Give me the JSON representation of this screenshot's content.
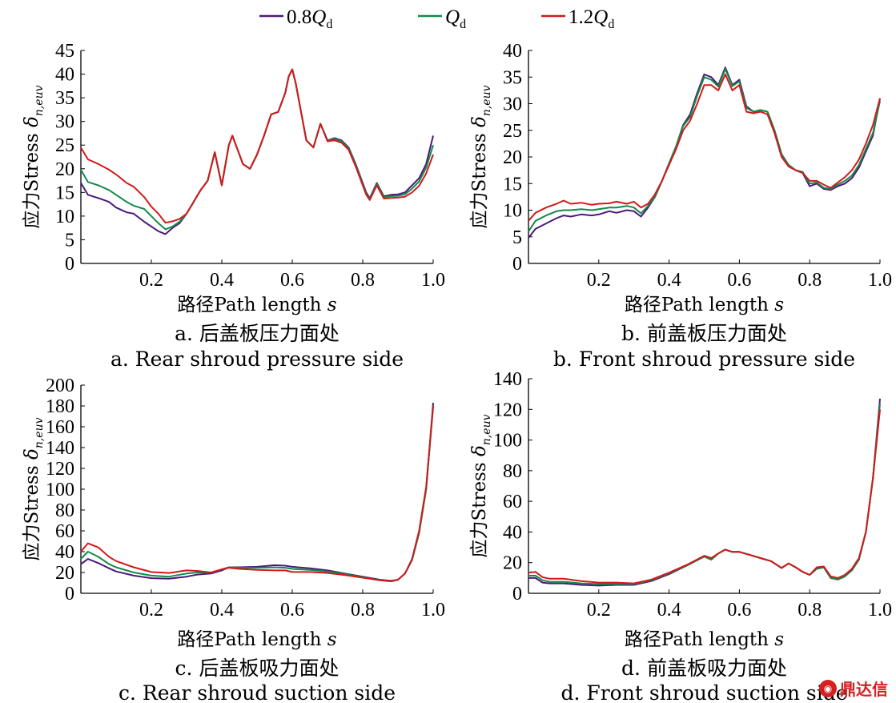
{
  "legend": {
    "items": [
      {
        "label": "0.8",
        "q": "Q",
        "sub": "d",
        "color": "#4a1a7a"
      },
      {
        "label": "",
        "q": "Q",
        "sub": "d",
        "color": "#138a4a"
      },
      {
        "label": "1.2",
        "q": "Q",
        "sub": "d",
        "color": "#d11a1a"
      }
    ]
  },
  "watermark": {
    "text": "鼎达信"
  },
  "chart_data": [
    {
      "type": "line",
      "caption_cn": "a. 后盖板压力面处",
      "caption_en": "a. Rear shroud pressure side",
      "xlabel_cn": "路径",
      "xlabel_en": "Path length ",
      "xlabel_var": "s",
      "ylabel_cn": "应力",
      "ylabel_en": "Stress ",
      "ylabel_var": "δ",
      "ylabel_sub": "n,euv",
      "xlim": [
        0,
        1.0
      ],
      "ylim": [
        0,
        45
      ],
      "xticks": [
        "0.2",
        "0.4",
        "0.6",
        "0.8",
        "1.0"
      ],
      "xtick_values": [
        0.2,
        0.4,
        0.6,
        0.8,
        1.0
      ],
      "yticks": [
        0,
        5,
        10,
        15,
        20,
        25,
        30,
        35,
        40,
        45
      ],
      "x": [
        0,
        0.02,
        0.05,
        0.08,
        0.1,
        0.13,
        0.15,
        0.18,
        0.2,
        0.22,
        0.24,
        0.26,
        0.28,
        0.3,
        0.32,
        0.34,
        0.36,
        0.38,
        0.4,
        0.42,
        0.43,
        0.44,
        0.46,
        0.48,
        0.5,
        0.52,
        0.54,
        0.56,
        0.58,
        0.59,
        0.6,
        0.61,
        0.62,
        0.64,
        0.66,
        0.68,
        0.7,
        0.72,
        0.74,
        0.76,
        0.78,
        0.8,
        0.81,
        0.82,
        0.84,
        0.86,
        0.88,
        0.9,
        0.92,
        0.94,
        0.96,
        0.98,
        1.0
      ],
      "series": [
        {
          "name": "0.8Qd",
          "color": "#4a1a7a",
          "values": [
            17,
            14.5,
            13.8,
            13,
            11.8,
            10.8,
            10.5,
            8.8,
            7.8,
            6.8,
            6.2,
            7.5,
            8.5,
            10.5,
            13,
            15.5,
            17.5,
            23.5,
            16.5,
            25,
            27,
            25,
            21,
            20,
            23,
            27,
            31.5,
            32,
            36,
            39.5,
            41,
            38,
            34,
            26,
            24.5,
            29.5,
            26,
            26.5,
            26,
            24.5,
            21,
            17,
            15,
            13.8,
            17,
            14.2,
            14.5,
            14.6,
            15,
            16.5,
            18,
            21,
            27
          ]
        },
        {
          "name": "Qd",
          "color": "#138a4a",
          "values": [
            19.8,
            17.2,
            16.5,
            15.5,
            14.5,
            13,
            12.2,
            11.5,
            10,
            8.5,
            7.2,
            7.8,
            8.8,
            10.5,
            13,
            15.5,
            17.5,
            23.5,
            16.5,
            25,
            27,
            25,
            21,
            20,
            23,
            27,
            31.5,
            32,
            36,
            39.5,
            41,
            38,
            34,
            26,
            24.5,
            29.5,
            26,
            26.3,
            25.8,
            24.3,
            20.8,
            16.8,
            14.8,
            13.6,
            16.8,
            14,
            14.2,
            14.3,
            14.6,
            15.8,
            17.3,
            20.2,
            25
          ]
        },
        {
          "name": "1.2Qd",
          "color": "#d11a1a",
          "values": [
            24.5,
            22,
            21,
            19.8,
            18.8,
            17,
            16.2,
            14,
            12,
            10.5,
            8.6,
            8.9,
            9.4,
            10.5,
            13,
            15.5,
            17.5,
            23.5,
            16.5,
            25,
            27,
            25,
            21,
            20,
            23,
            27,
            31.5,
            32,
            36,
            39.5,
            41,
            38,
            34,
            26,
            24.5,
            29.5,
            25.8,
            26,
            25.5,
            24,
            20.5,
            16.5,
            14.5,
            13.4,
            16.5,
            13.7,
            13.8,
            13.9,
            14.1,
            15,
            16.4,
            19,
            23
          ]
        }
      ]
    },
    {
      "type": "line",
      "caption_cn": "b. 前盖板压力面处",
      "caption_en": "b. Front shroud pressure side",
      "xlabel_cn": "路径",
      "xlabel_en": "Path length ",
      "xlabel_var": "s",
      "ylabel_cn": "应力",
      "ylabel_en": "Stress ",
      "ylabel_var": "δ",
      "ylabel_sub": "n,euv",
      "xlim": [
        0,
        1.0
      ],
      "ylim": [
        0,
        40
      ],
      "xticks": [
        "0.2",
        "0.4",
        "0.6",
        "0.8",
        "1.0"
      ],
      "xtick_values": [
        0.2,
        0.4,
        0.6,
        0.8,
        1.0
      ],
      "yticks": [
        0,
        5,
        10,
        15,
        20,
        25,
        30,
        35,
        40
      ],
      "x": [
        0,
        0.02,
        0.05,
        0.08,
        0.1,
        0.12,
        0.15,
        0.18,
        0.2,
        0.23,
        0.25,
        0.28,
        0.3,
        0.32,
        0.34,
        0.36,
        0.38,
        0.4,
        0.42,
        0.44,
        0.46,
        0.48,
        0.5,
        0.52,
        0.54,
        0.56,
        0.58,
        0.6,
        0.62,
        0.64,
        0.66,
        0.68,
        0.7,
        0.72,
        0.74,
        0.76,
        0.78,
        0.8,
        0.82,
        0.84,
        0.86,
        0.88,
        0.9,
        0.92,
        0.94,
        0.96,
        0.98,
        1.0
      ],
      "series": [
        {
          "name": "0.8Qd",
          "color": "#4a1a7a",
          "values": [
            4.8,
            6.5,
            7.5,
            8.5,
            9,
            8.8,
            9.2,
            9,
            9.2,
            9.8,
            9.5,
            10,
            9.8,
            8.8,
            10.5,
            12.5,
            15.5,
            18.8,
            22,
            26,
            28,
            32,
            35.5,
            35,
            33.5,
            36.8,
            33.5,
            34.5,
            29.5,
            28.5,
            28.8,
            28.5,
            25,
            20.5,
            18.5,
            17.5,
            17,
            14.5,
            15,
            14,
            13.8,
            14.5,
            15,
            16,
            18,
            21,
            24,
            31
          ]
        },
        {
          "name": "Qd",
          "color": "#138a4a",
          "values": [
            6,
            8,
            9,
            9.8,
            10,
            10,
            10.2,
            10,
            10.2,
            10.5,
            10.5,
            10.8,
            10.5,
            9.4,
            10.8,
            12.5,
            15.5,
            18.8,
            22,
            25.8,
            27.5,
            31.5,
            35,
            34.5,
            33.2,
            36.5,
            33.3,
            34.2,
            29.2,
            28.5,
            28.8,
            28.5,
            25,
            20.5,
            18.5,
            17.5,
            17.2,
            15,
            15.2,
            14.2,
            14,
            14.8,
            15.5,
            16.5,
            18.5,
            21.5,
            24.5,
            30.5
          ]
        },
        {
          "name": "1.2Qd",
          "color": "#d11a1a",
          "values": [
            8,
            9.5,
            10.5,
            11.2,
            11.8,
            11.2,
            11.4,
            11,
            11.2,
            11.3,
            11.6,
            11.2,
            11.6,
            10.5,
            11.2,
            13,
            15.5,
            18.5,
            21.5,
            25,
            26.8,
            30,
            33.5,
            33.5,
            32.5,
            35.5,
            32.5,
            33.5,
            28.5,
            28.2,
            28.5,
            28,
            24.5,
            20,
            18.2,
            17.5,
            17,
            15.5,
            15.5,
            14.8,
            14.2,
            15.2,
            16.2,
            17.5,
            19.5,
            22.5,
            26,
            31
          ]
        }
      ]
    },
    {
      "type": "line",
      "caption_cn": "c. 后盖板吸力面处",
      "caption_en": "c. Rear shroud suction side",
      "xlabel_cn": "路径",
      "xlabel_en": "Path length ",
      "xlabel_var": "s",
      "ylabel_cn": "应力",
      "ylabel_en": "Stress ",
      "ylabel_var": "δ",
      "ylabel_sub": "n,euv",
      "xlim": [
        0,
        1.0
      ],
      "ylim": [
        0,
        200
      ],
      "xticks": [
        "0.2",
        "0.4",
        "0.6",
        "0.8",
        "1.0"
      ],
      "xtick_values": [
        0.2,
        0.4,
        0.6,
        0.8,
        1.0
      ],
      "yticks": [
        0,
        20,
        40,
        60,
        80,
        100,
        120,
        140,
        160,
        180,
        200
      ],
      "x": [
        0,
        0.02,
        0.05,
        0.08,
        0.1,
        0.15,
        0.2,
        0.25,
        0.3,
        0.33,
        0.37,
        0.4,
        0.42,
        0.45,
        0.5,
        0.55,
        0.58,
        0.6,
        0.65,
        0.7,
        0.75,
        0.8,
        0.85,
        0.88,
        0.9,
        0.92,
        0.94,
        0.96,
        0.98,
        1.0
      ],
      "series": [
        {
          "name": "0.8Qd",
          "color": "#4a1a7a",
          "values": [
            28,
            33,
            29,
            24,
            21,
            17,
            14.5,
            14,
            16,
            18,
            19,
            22,
            25,
            25,
            25.5,
            27,
            26.5,
            25.5,
            24,
            22,
            19,
            16,
            13,
            12,
            13,
            19,
            32,
            58,
            100,
            183
          ]
        },
        {
          "name": "Qd",
          "color": "#138a4a",
          "values": [
            33,
            40,
            35,
            28,
            25,
            20,
            17,
            16,
            19,
            20,
            20,
            23,
            25,
            24.5,
            24.5,
            25,
            24.5,
            23.5,
            22.5,
            21,
            18.5,
            15.5,
            12.5,
            11.5,
            13,
            19,
            32,
            58,
            100,
            180
          ]
        },
        {
          "name": "1.2Qd",
          "color": "#d11a1a",
          "values": [
            40,
            48,
            44,
            35,
            31,
            25,
            20.5,
            19.5,
            22,
            21.5,
            20,
            23,
            24.5,
            23.5,
            22.5,
            22,
            22,
            20.5,
            20.5,
            19.5,
            17.5,
            15,
            12.5,
            11.5,
            13,
            19,
            33,
            60,
            102,
            180
          ]
        }
      ]
    },
    {
      "type": "line",
      "caption_cn": "d. 前盖板吸力面处",
      "caption_en": "d. Front shroud suction side",
      "xlabel_cn": "路径",
      "xlabel_en": "Path length ",
      "xlabel_var": "s",
      "ylabel_cn": "应力",
      "ylabel_en": "Stress ",
      "ylabel_var": "δ",
      "ylabel_sub": "n,euv",
      "xlim": [
        0,
        1.0
      ],
      "ylim": [
        0,
        140
      ],
      "xticks": [
        "0.2",
        "0.4",
        "0.6",
        "0.8",
        "1.0"
      ],
      "xtick_values": [
        0.2,
        0.4,
        0.6,
        0.8,
        1.0
      ],
      "yticks": [
        0,
        20,
        40,
        60,
        80,
        100,
        120,
        140
      ],
      "x": [
        0,
        0.02,
        0.04,
        0.06,
        0.1,
        0.15,
        0.2,
        0.25,
        0.3,
        0.35,
        0.4,
        0.45,
        0.5,
        0.52,
        0.54,
        0.56,
        0.58,
        0.6,
        0.63,
        0.66,
        0.69,
        0.72,
        0.74,
        0.76,
        0.78,
        0.8,
        0.82,
        0.84,
        0.86,
        0.88,
        0.9,
        0.92,
        0.94,
        0.96,
        0.98,
        1.0
      ],
      "series": [
        {
          "name": "0.8Qd",
          "color": "#4a1a7a",
          "values": [
            10,
            10,
            7,
            6.5,
            6.5,
            5.5,
            5,
            5.5,
            5.5,
            8,
            12.5,
            18,
            24,
            22,
            26,
            28.5,
            27,
            27,
            25,
            23,
            21,
            16.5,
            19.5,
            17,
            14,
            12,
            16,
            17,
            10,
            9,
            11,
            15,
            22,
            40,
            75,
            127
          ]
        },
        {
          "name": "Qd",
          "color": "#138a4a",
          "values": [
            11.5,
            11.5,
            8.5,
            7.5,
            7.5,
            6.5,
            6,
            6,
            6,
            8.5,
            13,
            18,
            24,
            22,
            26,
            28.5,
            27,
            27,
            25,
            23,
            21,
            16.5,
            19.5,
            17,
            14,
            12,
            16,
            17,
            10,
            9,
            11,
            15,
            22,
            40,
            75,
            124
          ]
        },
        {
          "name": "1.2Qd",
          "color": "#d11a1a",
          "values": [
            13.5,
            14,
            10.5,
            9.5,
            9.5,
            8,
            7,
            7,
            6.5,
            9,
            13.5,
            18.5,
            24.5,
            23,
            26,
            28.5,
            27,
            27,
            25,
            23,
            21,
            16.5,
            19.5,
            17,
            14,
            12,
            17,
            17.5,
            11,
            10,
            12,
            16,
            23,
            40,
            75,
            120
          ]
        }
      ]
    }
  ]
}
